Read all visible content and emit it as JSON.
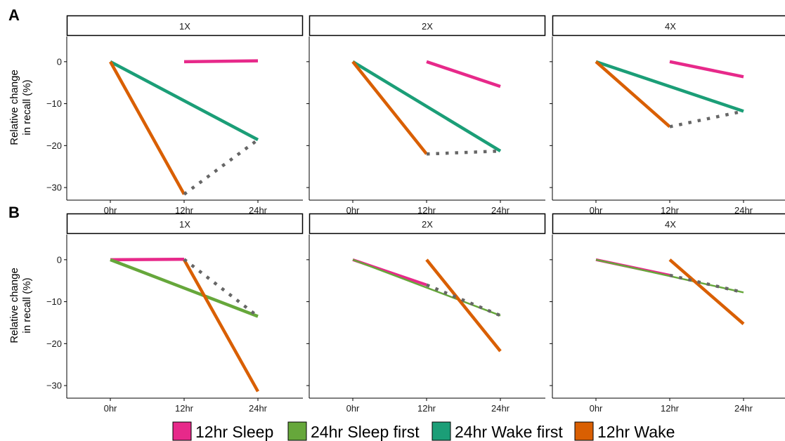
{
  "chart_data": {
    "type": "line",
    "x_categories": [
      "0hr",
      "12hr",
      "24hr"
    ],
    "ylabel_line1": "Relative change",
    "ylabel_line2": "in recall (%)",
    "ylim": [
      -33,
      6
    ],
    "yticks": [
      0,
      -10,
      -20,
      -30
    ],
    "ytick_labels": [
      "0",
      "-10",
      "-20",
      "-30"
    ],
    "legend": {
      "placement": "bottom",
      "entries": [
        {
          "name": "12hr Sleep",
          "color": "#e7298a"
        },
        {
          "name": "24hr Sleep first",
          "color": "#66a73b"
        },
        {
          "name": "24hr Wake first",
          "color": "#1b9e77"
        },
        {
          "name": "12hr Wake",
          "color": "#d95f02"
        }
      ]
    },
    "rows": [
      {
        "letter": "A",
        "facets": [
          {
            "strip": "1X",
            "series": [
              {
                "name": "12hr Sleep",
                "color": "#e7298a",
                "x": [
                  "12hr",
                  "24hr"
                ],
                "y": [
                  0,
                  0.2
                ],
                "width": 4.5
              },
              {
                "name": "24hr Wake first",
                "color": "#1b9e77",
                "x": [
                  "0hr",
                  "24hr"
                ],
                "y": [
                  0,
                  -18.6
                ],
                "width": 4.5
              },
              {
                "name": "12hr Wake",
                "color": "#d95f02",
                "x": [
                  "0hr",
                  "12hr"
                ],
                "y": [
                  0,
                  -31.6
                ],
                "width": 4.5
              }
            ],
            "dotted": [
              {
                "x": [
                  "12hr",
                  "24hr"
                ],
                "y": [
                  -31.6,
                  -18.6
                ]
              }
            ]
          },
          {
            "strip": "2X",
            "series": [
              {
                "name": "12hr Sleep",
                "color": "#e7298a",
                "x": [
                  "12hr",
                  "24hr"
                ],
                "y": [
                  0,
                  -5.9
                ],
                "width": 4.5
              },
              {
                "name": "24hr Wake first",
                "color": "#1b9e77",
                "x": [
                  "0hr",
                  "24hr"
                ],
                "y": [
                  0,
                  -21.3
                ],
                "width": 4.5
              },
              {
                "name": "12hr Wake",
                "color": "#d95f02",
                "x": [
                  "0hr",
                  "12hr"
                ],
                "y": [
                  0,
                  -22.0
                ],
                "width": 4.5
              }
            ],
            "dotted": [
              {
                "x": [
                  "12hr",
                  "24hr"
                ],
                "y": [
                  -22.0,
                  -21.3
                ]
              }
            ]
          },
          {
            "strip": "4X",
            "series": [
              {
                "name": "12hr Sleep",
                "color": "#e7298a",
                "x": [
                  "12hr",
                  "24hr"
                ],
                "y": [
                  0,
                  -3.6
                ],
                "width": 4.5
              },
              {
                "name": "24hr Wake first",
                "color": "#1b9e77",
                "x": [
                  "0hr",
                  "24hr"
                ],
                "y": [
                  0,
                  -11.8
                ],
                "width": 4.5
              },
              {
                "name": "12hr Wake",
                "color": "#d95f02",
                "x": [
                  "0hr",
                  "12hr"
                ],
                "y": [
                  0,
                  -15.5
                ],
                "width": 4.5
              }
            ],
            "dotted": [
              {
                "x": [
                  "12hr",
                  "24hr"
                ],
                "y": [
                  -15.5,
                  -11.8
                ]
              }
            ]
          }
        ]
      },
      {
        "letter": "B",
        "facets": [
          {
            "strip": "1X",
            "series": [
              {
                "name": "12hr Sleep",
                "color": "#e7298a",
                "x": [
                  "0hr",
                  "12hr"
                ],
                "y": [
                  0,
                  0.1
                ],
                "width": 4.5
              },
              {
                "name": "24hr Sleep first",
                "color": "#66a73b",
                "x": [
                  "0hr",
                  "24hr"
                ],
                "y": [
                  0,
                  -13.5
                ],
                "width": 4.5
              },
              {
                "name": "12hr Wake",
                "color": "#d95f02",
                "x": [
                  "12hr",
                  "24hr"
                ],
                "y": [
                  0,
                  -31.4
                ],
                "width": 4.5
              }
            ],
            "dotted": [
              {
                "x": [
                  "12hr",
                  "24hr"
                ],
                "y": [
                  0.1,
                  -13.5
                ]
              }
            ]
          },
          {
            "strip": "2X",
            "series": [
              {
                "name": "12hr Sleep",
                "color": "#e7298a",
                "x": [
                  "0hr",
                  "12hr"
                ],
                "y": [
                  0,
                  -6.0
                ],
                "width": 4
              },
              {
                "name": "24hr Sleep first",
                "color": "#66a73b",
                "x": [
                  "0hr",
                  "24hr"
                ],
                "y": [
                  0,
                  -13.3
                ],
                "width": 2.5
              },
              {
                "name": "12hr Wake",
                "color": "#d95f02",
                "x": [
                  "12hr",
                  "24hr"
                ],
                "y": [
                  0,
                  -21.8
                ],
                "width": 4.5
              }
            ],
            "dotted": [
              {
                "x": [
                  "12hr",
                  "24hr"
                ],
                "y": [
                  -6.0,
                  -13.3
                ]
              }
            ]
          },
          {
            "strip": "4X",
            "series": [
              {
                "name": "12hr Sleep",
                "color": "#e7298a",
                "x": [
                  "0hr",
                  "12hr"
                ],
                "y": [
                  0,
                  -3.7
                ],
                "width": 4
              },
              {
                "name": "24hr Sleep first",
                "color": "#66a73b",
                "x": [
                  "0hr",
                  "24hr"
                ],
                "y": [
                  0,
                  -7.8
                ],
                "width": 2.5
              },
              {
                "name": "12hr Wake",
                "color": "#d95f02",
                "x": [
                  "12hr",
                  "24hr"
                ],
                "y": [
                  0,
                  -15.3
                ],
                "width": 4.5
              }
            ],
            "dotted": [
              {
                "x": [
                  "12hr",
                  "24hr"
                ],
                "y": [
                  -3.7,
                  -7.8
                ]
              }
            ]
          }
        ]
      }
    ]
  }
}
